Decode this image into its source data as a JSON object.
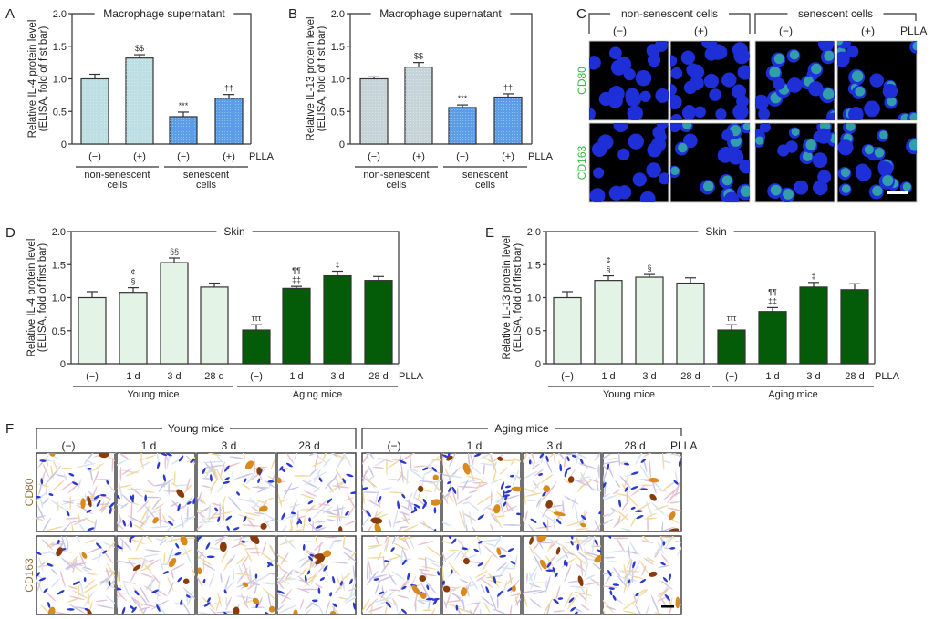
{
  "figure": {
    "panel_labels": [
      "A",
      "B",
      "C",
      "D",
      "E",
      "F"
    ]
  },
  "chart_data": [
    {
      "panel": "A",
      "type": "bar",
      "title": "Macrophage supernatant",
      "ylabel": [
        "Relative IL-4 protein level",
        "(ELISA, fold of fist bar)"
      ],
      "ylim": [
        0,
        2.0
      ],
      "yticks": [
        "0",
        "0.5",
        "1.0",
        "1.5",
        "2.0"
      ],
      "categories": [
        "(−)",
        "(+)",
        "(−)",
        "(+)"
      ],
      "x_suffix": "PLLA",
      "groups": [
        {
          "label": [
            "non-senescent",
            "cells"
          ],
          "members": [
            0,
            1
          ]
        },
        {
          "label": [
            "senescent",
            "cells"
          ],
          "members": [
            2,
            3
          ]
        }
      ],
      "values": [
        1.0,
        1.32,
        0.42,
        0.7
      ],
      "errors": [
        0.07,
        0.05,
        0.07,
        0.06
      ],
      "annotations": [
        [],
        [
          "$$"
        ],
        [
          "***"
        ],
        [
          "††"
        ]
      ],
      "colors": [
        "#bcdfe4",
        "#bcdfe4",
        "#5c9de8",
        "#5c9de8"
      ],
      "grid": false
    },
    {
      "panel": "B",
      "type": "bar",
      "title": "Macrophage supernatant",
      "ylabel": [
        "Relative IL-13 protein level",
        "(ELISA, fold of fist bar)"
      ],
      "ylim": [
        0,
        2.0
      ],
      "yticks": [
        "0",
        "0.5",
        "1.0",
        "1.5",
        "2.0"
      ],
      "categories": [
        "(−)",
        "(+)",
        "(−)",
        "(+)"
      ],
      "x_suffix": "PLLA",
      "groups": [
        {
          "label": [
            "non-senescent",
            "cells"
          ],
          "members": [
            0,
            1
          ]
        },
        {
          "label": [
            "senescent",
            "cells"
          ],
          "members": [
            2,
            3
          ]
        }
      ],
      "values": [
        1.0,
        1.18,
        0.56,
        0.72
      ],
      "errors": [
        0.03,
        0.07,
        0.04,
        0.05
      ],
      "annotations": [
        [],
        [
          "$$"
        ],
        [
          "***"
        ],
        [
          "††"
        ]
      ],
      "colors": [
        "#c6d4d9",
        "#c6d4d9",
        "#5c9de8",
        "#5c9de8"
      ],
      "grid": false
    },
    {
      "panel": "D",
      "type": "bar",
      "title": "Skin",
      "ylabel": [
        "Relative IL-4 protein level",
        "(ELISA, fold of first bar)"
      ],
      "ylim": [
        0,
        2.0
      ],
      "yticks": [
        "0",
        "0.5",
        "1.0",
        "1.5",
        "2.0"
      ],
      "categories": [
        "(−)",
        "1 d",
        "3 d",
        "28 d",
        "(−)",
        "1 d",
        "3 d",
        "28 d"
      ],
      "x_suffix": "PLLA",
      "groups": [
        {
          "label": [
            "Young mice"
          ],
          "members": [
            0,
            3
          ]
        },
        {
          "label": [
            "Aging mice"
          ],
          "members": [
            4,
            7
          ]
        }
      ],
      "values": [
        1.0,
        1.08,
        1.53,
        1.16,
        0.51,
        1.14,
        1.33,
        1.26
      ],
      "errors": [
        0.09,
        0.07,
        0.07,
        0.06,
        0.08,
        0.03,
        0.07,
        0.06
      ],
      "annotations": [
        [],
        [
          "¢",
          "§"
        ],
        [
          "§§"
        ],
        [],
        [
          "τττ"
        ],
        [
          "¶¶",
          "‡‡"
        ],
        [
          "‡"
        ],
        []
      ],
      "colors": [
        "#e3f3e5",
        "#e3f3e5",
        "#e3f3e5",
        "#e3f3e5",
        "#045c08",
        "#045c08",
        "#045c08",
        "#045c08"
      ],
      "grid": false
    },
    {
      "panel": "E",
      "type": "bar",
      "title": "Skin",
      "ylabel": [
        "Relative IL-13 protein level",
        "(ELISA, fold of first bar)"
      ],
      "ylim": [
        0,
        2.0
      ],
      "yticks": [
        "0",
        "0.5",
        "1.0",
        "1.5",
        "2.0"
      ],
      "categories": [
        "(−)",
        "1 d",
        "3 d",
        "28 d",
        "(−)",
        "1 d",
        "3 d",
        "28 d"
      ],
      "x_suffix": "PLLA",
      "groups": [
        {
          "label": [
            "Young mice"
          ],
          "members": [
            0,
            3
          ]
        },
        {
          "label": [
            "Aging mice"
          ],
          "members": [
            4,
            7
          ]
        }
      ],
      "values": [
        1.0,
        1.26,
        1.31,
        1.22,
        0.51,
        0.79,
        1.16,
        1.12
      ],
      "errors": [
        0.09,
        0.07,
        0.04,
        0.08,
        0.08,
        0.06,
        0.07,
        0.09
      ],
      "annotations": [
        [],
        [
          "¢",
          "§"
        ],
        [
          "§"
        ],
        [],
        [
          "τττ"
        ],
        [
          "¶¶",
          "‡‡"
        ],
        [
          "‡"
        ],
        []
      ],
      "colors": [
        "#e3f3e5",
        "#e3f3e5",
        "#e3f3e5",
        "#e3f3e5",
        "#045c08",
        "#045c08",
        "#045c08",
        "#045c08"
      ],
      "grid": false
    }
  ],
  "image_panels": [
    {
      "panel": "C",
      "kind": "immunofluorescence",
      "groups": [
        "non-senescent cells",
        "senescent cells"
      ],
      "columns": [
        "(−)",
        "(+)",
        "(−)",
        "(+)"
      ],
      "column_suffix": "PLLA",
      "rows": [
        "CD80",
        "CD163"
      ],
      "row_label_color": "#2dbf35",
      "scale_bar": true
    },
    {
      "panel": "F",
      "kind": "immunohistochemistry",
      "groups": [
        "Young mice",
        "Aging mice"
      ],
      "columns": [
        "(−)",
        "1 d",
        "3 d",
        "28 d",
        "(−)",
        "1 d",
        "3 d",
        "28 d"
      ],
      "column_suffix": "PLLA",
      "rows": [
        "CD80",
        "CD163"
      ],
      "row_label_color": "#8c6d2c",
      "scale_bar": true
    }
  ]
}
